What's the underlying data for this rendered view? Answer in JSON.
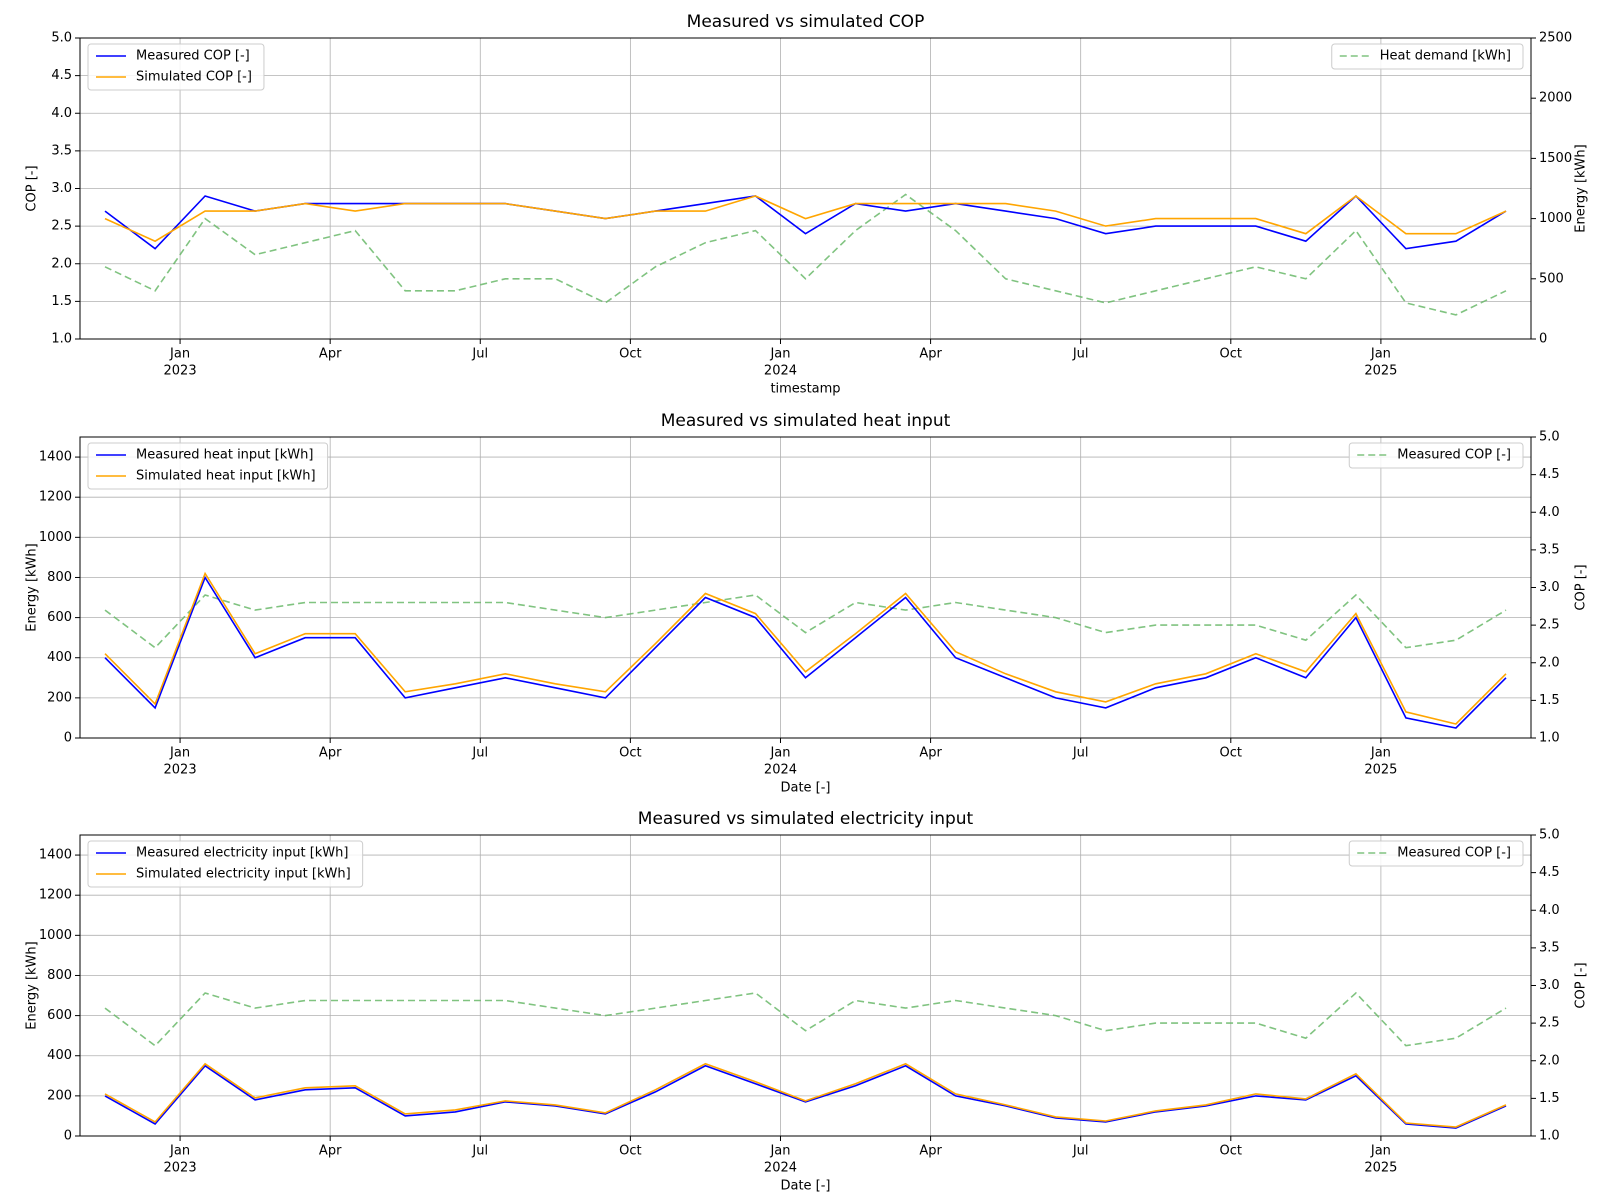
{
  "chart_data": [
    {
      "type": "line",
      "title": "Measured vs simulated COP",
      "xlabel": "timestamp",
      "ylabel": "COP [-]",
      "y2label": "Energy [kWh]",
      "x": [
        "2022-11",
        "2022-12",
        "2023-01",
        "2023-02",
        "2023-03",
        "2023-04",
        "2023-05",
        "2023-06",
        "2023-07",
        "2023-08",
        "2023-09",
        "2023-10",
        "2023-11",
        "2023-12",
        "2024-01",
        "2024-02",
        "2024-03",
        "2024-04",
        "2024-05",
        "2024-06",
        "2024-07",
        "2024-08",
        "2024-09",
        "2024-10",
        "2024-11",
        "2024-12",
        "2025-01",
        "2025-02",
        "2025-03"
      ],
      "xlim": [
        "2022-11",
        "2025-04"
      ],
      "xticks": [
        {
          "value": "2023-01",
          "label": "Jan",
          "year": "2023"
        },
        {
          "value": "2023-04",
          "label": "Apr"
        },
        {
          "value": "2023-07",
          "label": "Jul"
        },
        {
          "value": "2023-10",
          "label": "Oct"
        },
        {
          "value": "2024-01",
          "label": "Jan",
          "year": "2024"
        },
        {
          "value": "2024-04",
          "label": "Apr"
        },
        {
          "value": "2024-07",
          "label": "Jul"
        },
        {
          "value": "2024-10",
          "label": "Oct"
        },
        {
          "value": "2025-01",
          "label": "Jan",
          "year": "2025"
        }
      ],
      "ylim": [
        1,
        5
      ],
      "yticks": [
        {
          "value": 1,
          "label": "1.0"
        },
        1.5,
        {
          "value": 2,
          "label": "2.0"
        },
        2.5,
        {
          "value": 3,
          "label": "3.0"
        },
        3.5,
        {
          "value": 4,
          "label": "4.0"
        },
        4.5,
        {
          "value": 5,
          "label": "5.0"
        }
      ],
      "y2lim": [
        0,
        2500
      ],
      "y2ticks": [
        0,
        500,
        1000,
        1500,
        2000,
        2500
      ],
      "grid": true,
      "legend": "upper left",
      "legend2": "upper right",
      "series": [
        {
          "name": "Measured COP [-]",
          "color": "#0000ff",
          "values": [
            2.7,
            2.2,
            2.9,
            2.7,
            2.8,
            2.8,
            2.8,
            2.8,
            2.8,
            2.7,
            2.6,
            2.7,
            2.8,
            2.9,
            2.4,
            2.8,
            2.7,
            2.8,
            2.7,
            2.6,
            2.4,
            2.5,
            2.5,
            2.5,
            2.3,
            2.9,
            2.2,
            2.3,
            2.7
          ]
        },
        {
          "name": "Simulated COP [-]",
          "color": "#ffa500",
          "values": [
            2.6,
            2.3,
            2.7,
            2.7,
            2.8,
            2.7,
            2.8,
            2.8,
            2.8,
            2.7,
            2.6,
            2.7,
            2.7,
            2.9,
            2.6,
            2.8,
            2.8,
            2.8,
            2.8,
            2.7,
            2.5,
            2.6,
            2.6,
            2.6,
            2.4,
            2.9,
            2.4,
            2.4,
            2.7
          ]
        },
        {
          "name": "Heat demand [kWh]",
          "color": "#6ab86a",
          "linestyle": "dashed",
          "axis": "y2",
          "values": [
            600,
            400,
            1000,
            700,
            800,
            900,
            400,
            400,
            500,
            500,
            300,
            600,
            800,
            900,
            500,
            900,
            1200,
            900,
            500,
            400,
            300,
            400,
            500,
            600,
            500,
            900,
            300,
            200,
            400
          ]
        }
      ]
    },
    {
      "type": "line",
      "title": "Measured vs simulated heat input",
      "xlabel": "Date [-]",
      "ylabel": "Energy [kWh]",
      "y2label": "COP [-]",
      "x": [
        "2022-11",
        "2022-12",
        "2023-01",
        "2023-02",
        "2023-03",
        "2023-04",
        "2023-05",
        "2023-06",
        "2023-07",
        "2023-08",
        "2023-09",
        "2023-10",
        "2023-11",
        "2023-12",
        "2024-01",
        "2024-02",
        "2024-03",
        "2024-04",
        "2024-05",
        "2024-06",
        "2024-07",
        "2024-08",
        "2024-09",
        "2024-10",
        "2024-11",
        "2024-12",
        "2025-01",
        "2025-02",
        "2025-03"
      ],
      "xlim": [
        "2022-11",
        "2025-04"
      ],
      "xticks": [
        {
          "value": "2023-01",
          "label": "Jan",
          "year": "2023"
        },
        {
          "value": "2023-04",
          "label": "Apr"
        },
        {
          "value": "2023-07",
          "label": "Jul"
        },
        {
          "value": "2023-10",
          "label": "Oct"
        },
        {
          "value": "2024-01",
          "label": "Jan",
          "year": "2024"
        },
        {
          "value": "2024-04",
          "label": "Apr"
        },
        {
          "value": "2024-07",
          "label": "Jul"
        },
        {
          "value": "2024-10",
          "label": "Oct"
        },
        {
          "value": "2025-01",
          "label": "Jan",
          "year": "2025"
        }
      ],
      "ylim": [
        0,
        1500
      ],
      "yticks": [
        0,
        200,
        400,
        600,
        800,
        1000,
        1200,
        1400
      ],
      "y2lim": [
        1,
        5
      ],
      "y2ticks": [
        {
          "value": 1,
          "label": "1.0"
        },
        1.5,
        {
          "value": 2,
          "label": "2.0"
        },
        2.5,
        {
          "value": 3,
          "label": "3.0"
        },
        3.5,
        {
          "value": 4,
          "label": "4.0"
        },
        4.5,
        {
          "value": 5,
          "label": "5.0"
        }
      ],
      "grid": true,
      "legend": "upper left",
      "legend2": "upper right",
      "series": [
        {
          "name": "Measured heat input [kWh]",
          "color": "#0000ff",
          "values": [
            400,
            150,
            800,
            400,
            500,
            500,
            200,
            250,
            300,
            250,
            200,
            450,
            700,
            600,
            300,
            500,
            700,
            400,
            300,
            200,
            150,
            250,
            300,
            400,
            300,
            600,
            100,
            50,
            300
          ]
        },
        {
          "name": "Simulated heat input [kWh]",
          "color": "#ffa500",
          "values": [
            420,
            170,
            820,
            420,
            520,
            520,
            230,
            270,
            320,
            270,
            230,
            470,
            720,
            620,
            330,
            520,
            720,
            430,
            320,
            230,
            180,
            270,
            320,
            420,
            330,
            620,
            130,
            70,
            320
          ]
        },
        {
          "name": "Measured COP [-]",
          "color": "#6ab86a",
          "linestyle": "dashed",
          "axis": "y2",
          "values": [
            2.7,
            2.2,
            2.9,
            2.7,
            2.8,
            2.8,
            2.8,
            2.8,
            2.8,
            2.7,
            2.6,
            2.7,
            2.8,
            2.9,
            2.4,
            2.8,
            2.7,
            2.8,
            2.7,
            2.6,
            2.4,
            2.5,
            2.5,
            2.5,
            2.3,
            2.9,
            2.2,
            2.3,
            2.7
          ]
        }
      ]
    },
    {
      "type": "line",
      "title": "Measured vs simulated electricity input",
      "xlabel": "Date [-]",
      "ylabel": "Energy [kWh]",
      "y2label": "COP [-]",
      "x": [
        "2022-11",
        "2022-12",
        "2023-01",
        "2023-02",
        "2023-03",
        "2023-04",
        "2023-05",
        "2023-06",
        "2023-07",
        "2023-08",
        "2023-09",
        "2023-10",
        "2023-11",
        "2023-12",
        "2024-01",
        "2024-02",
        "2024-03",
        "2024-04",
        "2024-05",
        "2024-06",
        "2024-07",
        "2024-08",
        "2024-09",
        "2024-10",
        "2024-11",
        "2024-12",
        "2025-01",
        "2025-02",
        "2025-03"
      ],
      "xlim": [
        "2022-11",
        "2025-04"
      ],
      "xticks": [
        {
          "value": "2023-01",
          "label": "Jan",
          "year": "2023"
        },
        {
          "value": "2023-04",
          "label": "Apr"
        },
        {
          "value": "2023-07",
          "label": "Jul"
        },
        {
          "value": "2023-10",
          "label": "Oct"
        },
        {
          "value": "2024-01",
          "label": "Jan",
          "year": "2024"
        },
        {
          "value": "2024-04",
          "label": "Apr"
        },
        {
          "value": "2024-07",
          "label": "Jul"
        },
        {
          "value": "2024-10",
          "label": "Oct"
        },
        {
          "value": "2025-01",
          "label": "Jan",
          "year": "2025"
        }
      ],
      "ylim": [
        0,
        1500
      ],
      "yticks": [
        0,
        200,
        400,
        600,
        800,
        1000,
        1200,
        1400
      ],
      "y2lim": [
        1,
        5
      ],
      "y2ticks": [
        {
          "value": 1,
          "label": "1.0"
        },
        1.5,
        {
          "value": 2,
          "label": "2.0"
        },
        2.5,
        {
          "value": 3,
          "label": "3.0"
        },
        3.5,
        {
          "value": 4,
          "label": "4.0"
        },
        4.5,
        {
          "value": 5,
          "label": "5.0"
        }
      ],
      "grid": true,
      "legend": "upper left",
      "legend2": "upper right",
      "series": [
        {
          "name": "Measured electricity input [kWh]",
          "color": "#0000ff",
          "values": [
            200,
            60,
            350,
            180,
            230,
            240,
            100,
            120,
            170,
            150,
            110,
            220,
            350,
            260,
            170,
            250,
            350,
            200,
            150,
            90,
            70,
            120,
            150,
            200,
            180,
            300,
            60,
            40,
            150
          ]
        },
        {
          "name": "Simulated electricity input [kWh]",
          "color": "#ffa500",
          "values": [
            210,
            70,
            360,
            190,
            240,
            250,
            110,
            130,
            175,
            155,
            115,
            230,
            360,
            270,
            175,
            260,
            360,
            210,
            155,
            95,
            75,
            125,
            155,
            210,
            185,
            310,
            65,
            45,
            155
          ]
        },
        {
          "name": "Measured COP [-]",
          "color": "#6ab86a",
          "linestyle": "dashed",
          "axis": "y2",
          "values": [
            2.7,
            2.2,
            2.9,
            2.7,
            2.8,
            2.8,
            2.8,
            2.8,
            2.8,
            2.7,
            2.6,
            2.7,
            2.8,
            2.9,
            2.4,
            2.8,
            2.7,
            2.8,
            2.7,
            2.6,
            2.4,
            2.5,
            2.5,
            2.5,
            2.3,
            2.9,
            2.2,
            2.3,
            2.7
          ]
        }
      ]
    }
  ]
}
